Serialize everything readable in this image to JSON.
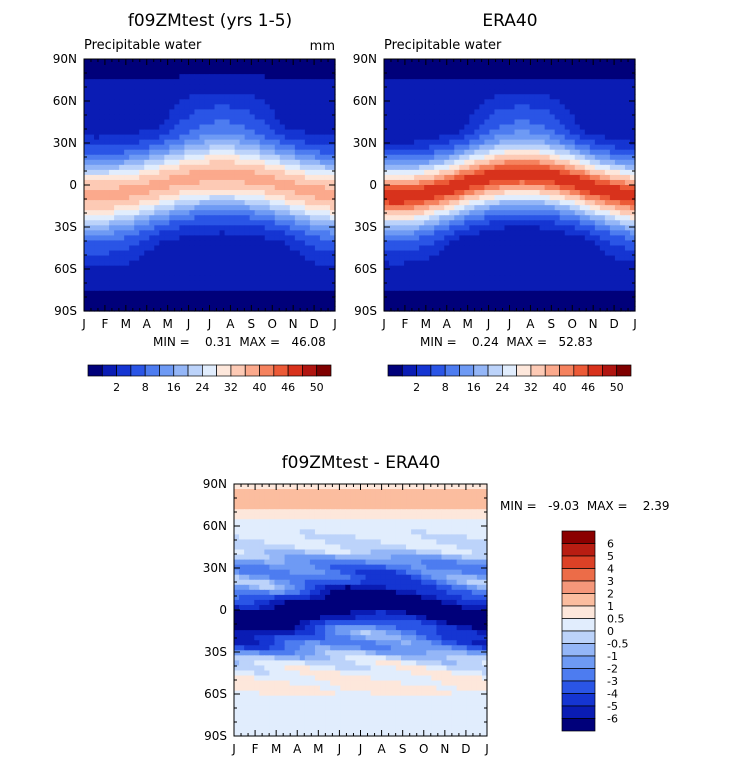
{
  "colors": {
    "abs_scale": [
      "#00007a",
      "#0a1cb4",
      "#1535d2",
      "#2a55e6",
      "#4d7cf0",
      "#6e9af4",
      "#94b6f7",
      "#bcd3fa",
      "#e1edfd",
      "#fde7db",
      "#fdcab5",
      "#fba98c",
      "#f5825e",
      "#ec5a37",
      "#d8321c",
      "#b01510",
      "#7f0000"
    ],
    "diff_scale": [
      "#00007a",
      "#0a1cb4",
      "#1535d2",
      "#2a55e6",
      "#4d7cf0",
      "#6e9af4",
      "#94b6f7",
      "#bcd3fa",
      "#e1edfd",
      "#fde7db",
      "#fbbd9f",
      "#f5977a",
      "#ec6c48",
      "#dc4126",
      "#b81d12",
      "#8b0000"
    ]
  },
  "chart_data": [
    {
      "type": "heatmap",
      "title": "f09ZMtest (yrs 1-5)",
      "subtitle": "Precipitable water",
      "units": "mm",
      "x": [
        "J",
        "F",
        "M",
        "A",
        "M",
        "J",
        "J",
        "A",
        "S",
        "O",
        "N",
        "D",
        "J"
      ],
      "y_ticks": [
        "90N",
        "60N",
        "30N",
        "0",
        "30S",
        "60S",
        "90S"
      ],
      "stats": "MIN =    0.31  MAX =   46.08",
      "min": 0.31,
      "max": 46.08,
      "colorbar_labels": [
        "2",
        "8",
        "16",
        "24",
        "32",
        "40",
        "46",
        "50"
      ]
    },
    {
      "type": "heatmap",
      "title": "ERA40",
      "subtitle": "Precipitable water",
      "units": "",
      "x": [
        "J",
        "F",
        "M",
        "A",
        "M",
        "J",
        "J",
        "A",
        "S",
        "O",
        "N",
        "D",
        "J"
      ],
      "y_ticks": [
        "90N",
        "60N",
        "30N",
        "0",
        "30S",
        "60S",
        "90S"
      ],
      "stats": "MIN =    0.24  MAX =   52.83",
      "min": 0.24,
      "max": 52.83,
      "colorbar_labels": [
        "2",
        "8",
        "16",
        "24",
        "32",
        "40",
        "46",
        "50"
      ]
    },
    {
      "type": "heatmap",
      "title": "f09ZMtest - ERA40",
      "x": [
        "J",
        "F",
        "M",
        "A",
        "M",
        "J",
        "J",
        "A",
        "S",
        "O",
        "N",
        "D",
        "J"
      ],
      "y_ticks": [
        "90N",
        "60N",
        "30N",
        "0",
        "30S",
        "60S",
        "90S"
      ],
      "stats": "MIN =   -9.03  MAX =    2.39",
      "min": -9.03,
      "max": 2.39,
      "colorbar_labels": [
        "6",
        "5",
        "4",
        "3",
        "2",
        "1",
        "0.5",
        "0",
        "-0.5",
        "-1",
        "-2",
        "-3",
        "-4",
        "-5",
        "-6"
      ]
    }
  ]
}
